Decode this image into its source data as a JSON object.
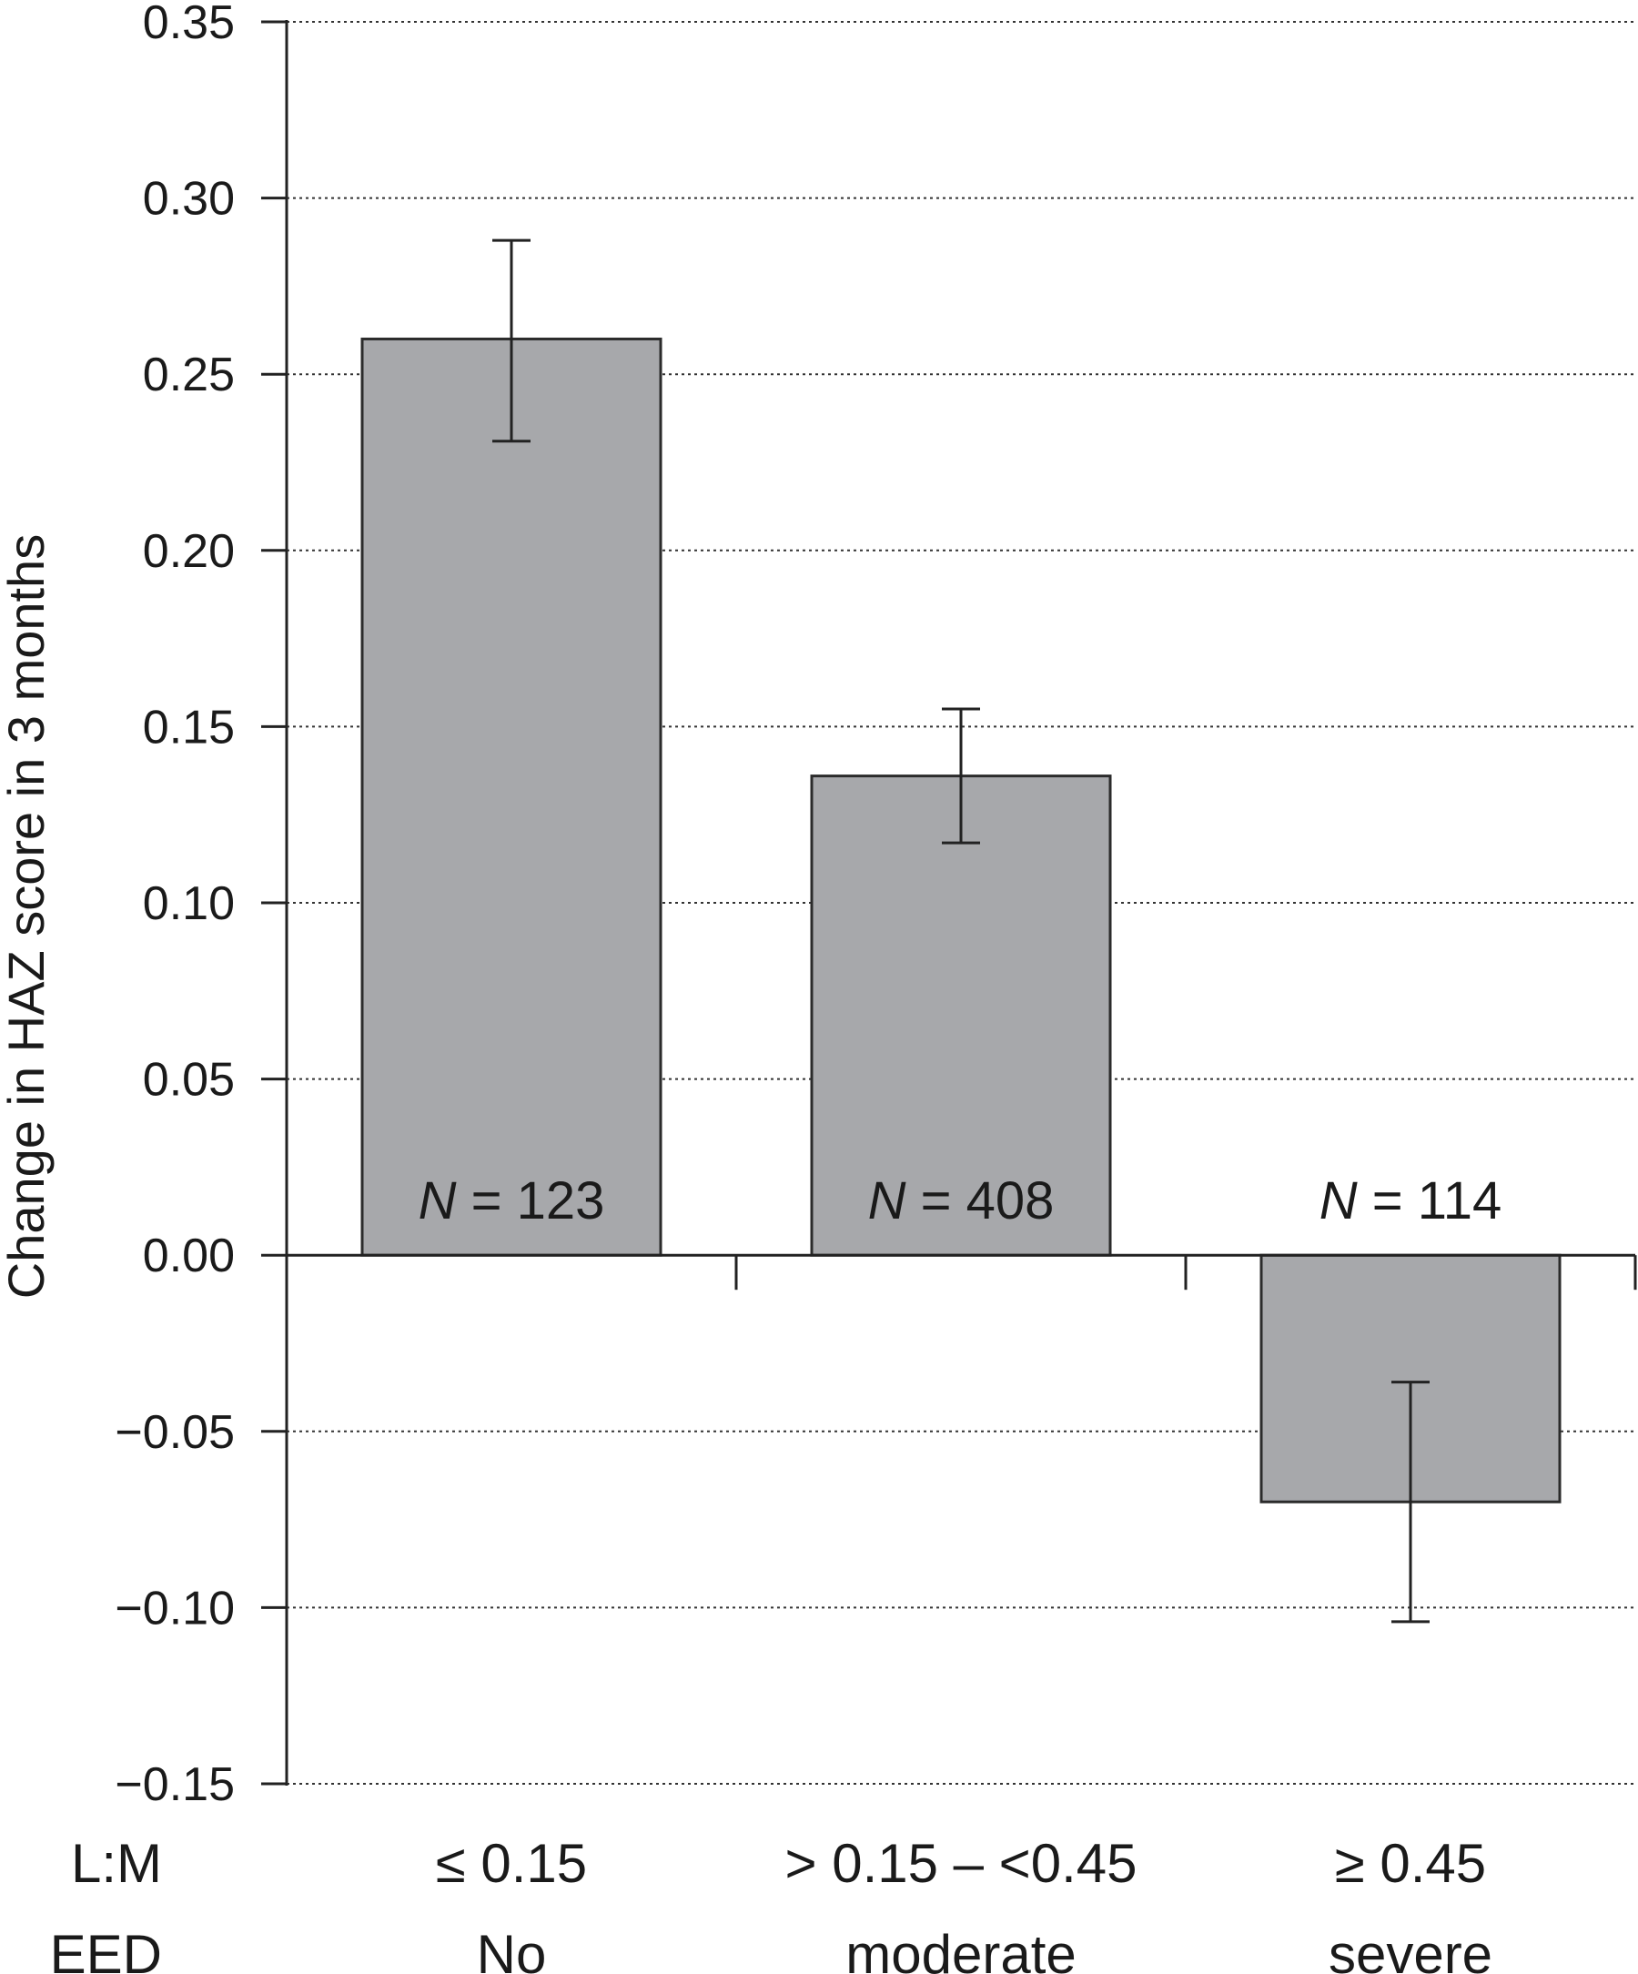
{
  "chart_data": {
    "type": "bar",
    "title": "",
    "xlabel": "",
    "ylabel": "Change in HAZ score in 3 months",
    "ylim": [
      -0.15,
      0.35
    ],
    "yticks": [
      "0.35",
      "0.30",
      "0.25",
      "0.20",
      "0.15",
      "0.10",
      "0.05",
      "0.00",
      "−0.05",
      "−0.10",
      "−0.15"
    ],
    "ytick_values": [
      0.35,
      0.3,
      0.25,
      0.2,
      0.15,
      0.1,
      0.05,
      0.0,
      -0.05,
      -0.1,
      -0.15
    ],
    "grid": "horizontal dotted",
    "bar_color": "#a7a8ab",
    "row_labels": {
      "lm": "L:M",
      "eed": "EED"
    },
    "categories": [
      {
        "lm": "≤ 0.15",
        "eed": "No",
        "n_prefix": "N",
        "n_value": "= 123",
        "value": 0.26,
        "error_low": 0.231,
        "error_high": 0.288
      },
      {
        "lm": "> 0.15 – <0.45",
        "eed": "moderate",
        "n_prefix": "N",
        "n_value": "= 408",
        "value": 0.136,
        "error_low": 0.117,
        "error_high": 0.155
      },
      {
        "lm": "≥ 0.45",
        "eed": "severe",
        "n_prefix": "N",
        "n_value": "= 114",
        "value": -0.07,
        "error_low": -0.104,
        "error_high": -0.036
      }
    ]
  }
}
